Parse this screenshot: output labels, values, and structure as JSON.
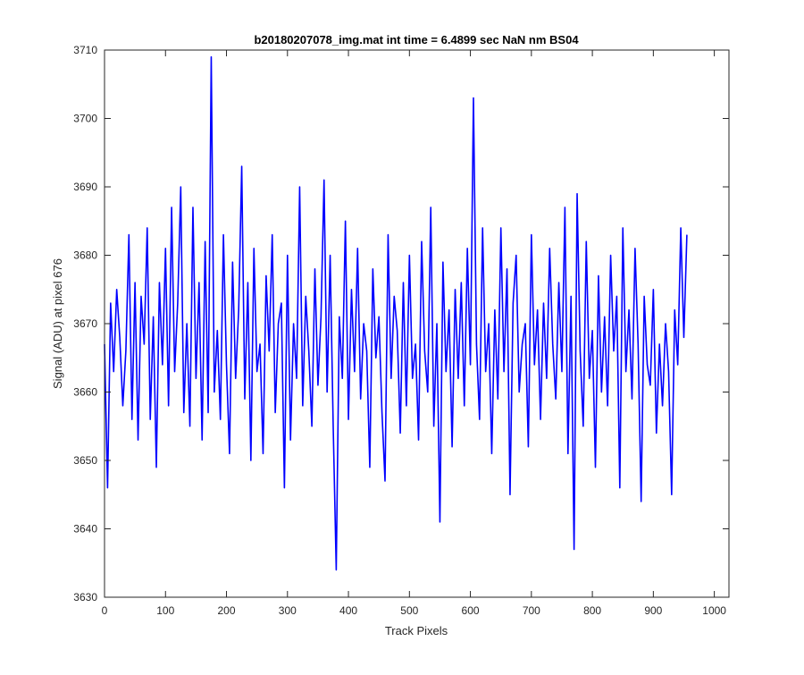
{
  "chart_data": {
    "type": "line",
    "title": "b20180207078_img.mat int time = 6.4899 sec  NaN nm BS04",
    "xlabel": "Track Pixels",
    "ylabel": "Signal (ADU) at pixel 676",
    "xlim": [
      0,
      1024
    ],
    "ylim": [
      3630,
      3710
    ],
    "x_ticks": [
      0,
      100,
      200,
      300,
      400,
      500,
      600,
      700,
      800,
      900,
      1000
    ],
    "y_ticks": [
      3630,
      3640,
      3650,
      3660,
      3670,
      3680,
      3690,
      3700,
      3710
    ],
    "grid": false,
    "series_color": "#0000ff",
    "series": [
      {
        "x_start": 0,
        "x_step": 5,
        "values": [
          3667,
          3646,
          3673,
          3663,
          3675,
          3668,
          3658,
          3666,
          3683,
          3656,
          3676,
          3653,
          3674,
          3667,
          3684,
          3656,
          3671,
          3649,
          3676,
          3664,
          3681,
          3658,
          3687,
          3663,
          3673,
          3690,
          3657,
          3670,
          3655,
          3687,
          3662,
          3676,
          3653,
          3682,
          3657,
          3709,
          3660,
          3669,
          3656,
          3683,
          3664,
          3651,
          3679,
          3662,
          3672,
          3693,
          3659,
          3676,
          3650,
          3681,
          3663,
          3667,
          3651,
          3677,
          3666,
          3683,
          3657,
          3670,
          3673,
          3646,
          3680,
          3653,
          3670,
          3662,
          3690,
          3658,
          3674,
          3666,
          3655,
          3678,
          3661,
          3671,
          3691,
          3660,
          3680,
          3655,
          3634,
          3671,
          3662,
          3685,
          3656,
          3675,
          3663,
          3681,
          3659,
          3670,
          3666,
          3649,
          3678,
          3665,
          3671,
          3657,
          3647,
          3683,
          3662,
          3674,
          3669,
          3654,
          3676,
          3658,
          3680,
          3662,
          3667,
          3653,
          3682,
          3666,
          3660,
          3687,
          3655,
          3670,
          3641,
          3679,
          3663,
          3672,
          3652,
          3675,
          3662,
          3676,
          3658,
          3681,
          3664,
          3703,
          3667,
          3656,
          3684,
          3663,
          3670,
          3651,
          3672,
          3659,
          3684,
          3663,
          3678,
          3645,
          3673,
          3680,
          3660,
          3667,
          3670,
          3652,
          3683,
          3664,
          3672,
          3656,
          3673,
          3662,
          3681,
          3667,
          3659,
          3676,
          3663,
          3687,
          3651,
          3674,
          3637,
          3689,
          3666,
          3655,
          3682,
          3662,
          3669,
          3649,
          3677,
          3660,
          3671,
          3658,
          3680,
          3666,
          3674,
          3646,
          3684,
          3663,
          3672,
          3659,
          3681,
          3667,
          3644,
          3674,
          3664,
          3661,
          3675,
          3654,
          3667,
          3658,
          3670,
          3663,
          3645,
          3672,
          3664,
          3684,
          3668,
          3683
        ]
      }
    ]
  }
}
